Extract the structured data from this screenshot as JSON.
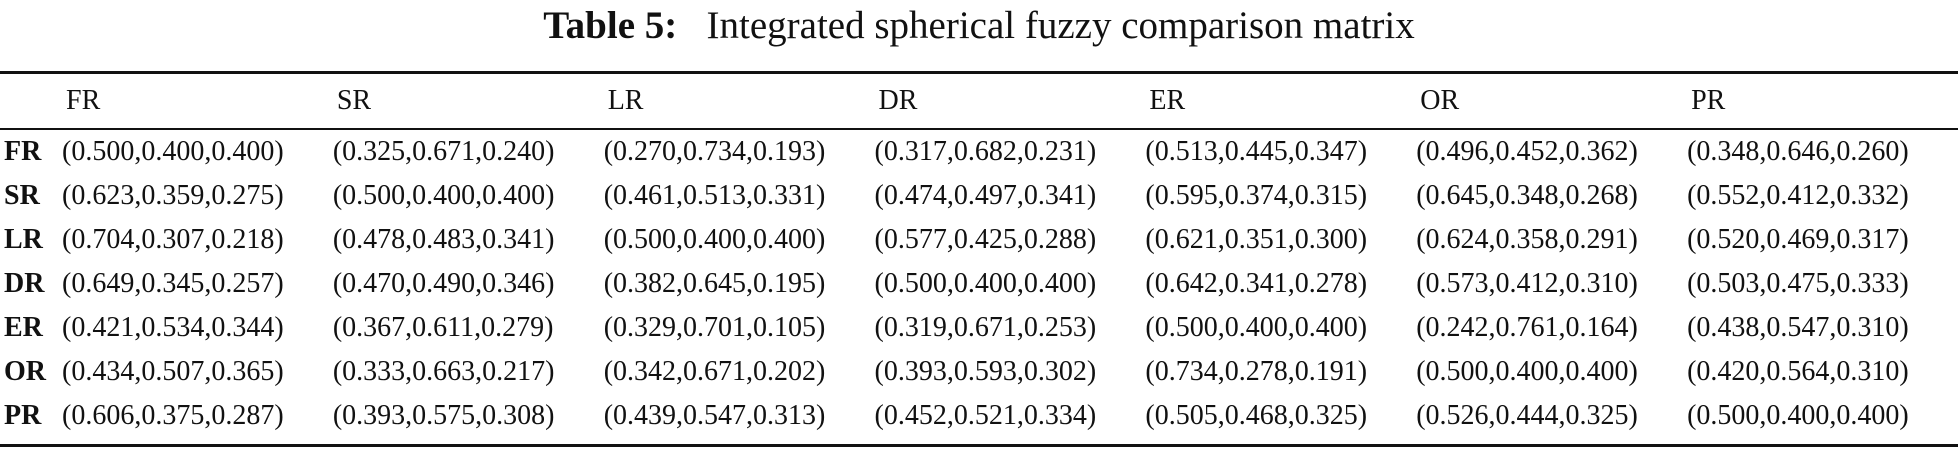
{
  "caption": {
    "label": "Table 5:",
    "title": "Integrated spherical fuzzy comparison matrix"
  },
  "table": {
    "corner": "",
    "columns": [
      "FR",
      "SR",
      "LR",
      "DR",
      "ER",
      "OR",
      "PR"
    ],
    "rows": [
      {
        "label": "FR",
        "cells": [
          "(0.500,0.400,0.400)",
          "(0.325,0.671,0.240)",
          "(0.270,0.734,0.193)",
          "(0.317,0.682,0.231)",
          "(0.513,0.445,0.347)",
          "(0.496,0.452,0.362)",
          "(0.348,0.646,0.260)"
        ]
      },
      {
        "label": "SR",
        "cells": [
          "(0.623,0.359,0.275)",
          "(0.500,0.400,0.400)",
          "(0.461,0.513,0.331)",
          "(0.474,0.497,0.341)",
          "(0.595,0.374,0.315)",
          "(0.645,0.348,0.268)",
          "(0.552,0.412,0.332)"
        ]
      },
      {
        "label": "LR",
        "cells": [
          "(0.704,0.307,0.218)",
          "(0.478,0.483,0.341)",
          "(0.500,0.400,0.400)",
          "(0.577,0.425,0.288)",
          "(0.621,0.351,0.300)",
          "(0.624,0.358,0.291)",
          "(0.520,0.469,0.317)"
        ]
      },
      {
        "label": "DR",
        "cells": [
          "(0.649,0.345,0.257)",
          "(0.470,0.490,0.346)",
          "(0.382,0.645,0.195)",
          "(0.500,0.400,0.400)",
          "(0.642,0.341,0.278)",
          "(0.573,0.412,0.310)",
          "(0.503,0.475,0.333)"
        ]
      },
      {
        "label": "ER",
        "cells": [
          "(0.421,0.534,0.344)",
          "(0.367,0.611,0.279)",
          "(0.329,0.701,0.105)",
          "(0.319,0.671,0.253)",
          "(0.500,0.400,0.400)",
          "(0.242,0.761,0.164)",
          "(0.438,0.547,0.310)"
        ]
      },
      {
        "label": "OR",
        "cells": [
          "(0.434,0.507,0.365)",
          "(0.333,0.663,0.217)",
          "(0.342,0.671,0.202)",
          "(0.393,0.593,0.302)",
          "(0.734,0.278,0.191)",
          "(0.500,0.400,0.400)",
          "(0.420,0.564,0.310)"
        ]
      },
      {
        "label": "PR",
        "cells": [
          "(0.606,0.375,0.287)",
          "(0.393,0.575,0.308)",
          "(0.439,0.547,0.313)",
          "(0.452,0.521,0.334)",
          "(0.505,0.468,0.325)",
          "(0.526,0.444,0.325)",
          "(0.500,0.400,0.400)"
        ]
      }
    ]
  }
}
